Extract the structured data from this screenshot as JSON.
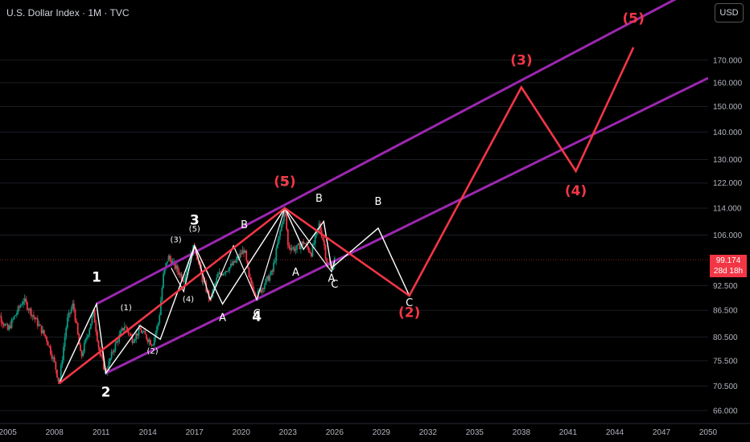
{
  "header": {
    "symbol": "U.S. Dollar Index · 1M · TVC",
    "currency_button": "USD"
  },
  "price_tag": {
    "value": "99.174",
    "countdown": "28d 18h"
  },
  "colors": {
    "background": "#000000",
    "channel": "#9c27b0",
    "projection": "#f23645",
    "waves": "#ffffff",
    "candle_up": "#089981",
    "candle_down": "#f23645"
  },
  "chart_data": {
    "type": "line",
    "title": "U.S. Dollar Index · 1M · TVC",
    "x_ticks": [
      "2005",
      "2008",
      "2011",
      "2014",
      "2017",
      "2020",
      "2023",
      "2026",
      "2029",
      "2032",
      "2035",
      "2038",
      "2041",
      "2044",
      "2047",
      "2050"
    ],
    "y_ticks": [
      "170.000",
      "160.000",
      "150.000",
      "140.000",
      "130.000",
      "122.000",
      "114.000",
      "106.000",
      "92.500",
      "86.500",
      "80.500",
      "75.500",
      "70.500",
      "66.000"
    ],
    "y_scale": "log",
    "xlim": [
      2004.5,
      2050
    ],
    "ylim": [
      64,
      200
    ],
    "last_price": 99.174,
    "price_history": [
      [
        2004.0,
        88
      ],
      [
        2005.0,
        82
      ],
      [
        2006.0,
        89
      ],
      [
        2006.5,
        86
      ],
      [
        2007.0,
        83
      ],
      [
        2007.5,
        80
      ],
      [
        2008.0,
        75
      ],
      [
        2008.3,
        71
      ],
      [
        2008.8,
        84
      ],
      [
        2009.2,
        88
      ],
      [
        2009.7,
        76
      ],
      [
        2010.2,
        82
      ],
      [
        2010.5,
        86
      ],
      [
        2010.9,
        77
      ],
      [
        2011.3,
        73
      ],
      [
        2011.8,
        78
      ],
      [
        2012.5,
        83
      ],
      [
        2013.0,
        80
      ],
      [
        2013.5,
        82
      ],
      [
        2014.3,
        79
      ],
      [
        2014.7,
        84
      ],
      [
        2015.0,
        95
      ],
      [
        2015.3,
        100
      ],
      [
        2015.8,
        97
      ],
      [
        2016.3,
        94
      ],
      [
        2016.8,
        101
      ],
      [
        2017.0,
        103
      ],
      [
        2017.5,
        94
      ],
      [
        2018.0,
        89
      ],
      [
        2018.5,
        95
      ],
      [
        2019.5,
        98
      ],
      [
        2020.2,
        102
      ],
      [
        2020.5,
        94
      ],
      [
        2021.0,
        90
      ],
      [
        2021.5,
        93
      ],
      [
        2022.0,
        96
      ],
      [
        2022.5,
        107
      ],
      [
        2022.8,
        114
      ],
      [
        2023.0,
        103
      ],
      [
        2023.5,
        102
      ],
      [
        2024.0,
        104
      ],
      [
        2024.5,
        101
      ],
      [
        2025.0,
        109
      ],
      [
        2025.3,
        104
      ],
      [
        2025.5,
        98
      ],
      [
        2025.8,
        97
      ],
      [
        2026.0,
        99.174
      ]
    ],
    "channel_upper": [
      [
        2010.7,
        88
      ],
      [
        2050,
        210
      ]
    ],
    "channel_lower": [
      [
        2011.3,
        73
      ],
      [
        2050,
        162
      ]
    ],
    "projection_path": [
      [
        2008.3,
        71
      ],
      [
        2022.8,
        114
      ],
      [
        2030.8,
        90
      ],
      [
        2038,
        158
      ],
      [
        2041.5,
        126
      ],
      [
        2045.2,
        176
      ]
    ],
    "white_path_1": [
      [
        2008.3,
        71
      ],
      [
        2010.7,
        88
      ],
      [
        2011.3,
        73
      ],
      [
        2013.5,
        83
      ],
      [
        2014.8,
        80
      ],
      [
        2017.0,
        103
      ],
      [
        2018.8,
        88
      ],
      [
        2022.8,
        114
      ],
      [
        2024.0,
        102
      ],
      [
        2025.3,
        110
      ],
      [
        2025.8,
        97
      ],
      [
        2028.8,
        108
      ],
      [
        2030.8,
        90
      ]
    ],
    "white_path_2": [
      [
        2015.5,
        97
      ],
      [
        2016.3,
        91
      ],
      [
        2017.0,
        103
      ],
      [
        2018.0,
        89
      ],
      [
        2019.5,
        103
      ],
      [
        2021.0,
        89
      ],
      [
        2022.8,
        114
      ],
      [
        2025.8,
        96
      ],
      [
        2026.0,
        99
      ]
    ],
    "wave_labels": [
      {
        "text": "1",
        "x": 2010.7,
        "y": 93.5,
        "color": "white",
        "size": "large"
      },
      {
        "text": "2",
        "x": 2011.3,
        "y": 68.5,
        "color": "white",
        "size": "large"
      },
      {
        "text": "3",
        "x": 2017.0,
        "y": 109,
        "color": "white",
        "size": "large"
      },
      {
        "text": "4",
        "x": 2021.0,
        "y": 84,
        "color": "white",
        "size": "large"
      },
      {
        "text": "5",
        "x": 2022.8,
        "y": 121,
        "color": "white",
        "size": "large"
      },
      {
        "text": "(1)",
        "x": 2012.6,
        "y": 86.5,
        "color": "white",
        "size": "small"
      },
      {
        "text": "(2)",
        "x": 2014.3,
        "y": 77,
        "color": "white",
        "size": "small"
      },
      {
        "text": "(3)",
        "x": 2015.8,
        "y": 104,
        "color": "white",
        "size": "small"
      },
      {
        "text": "(4)",
        "x": 2016.6,
        "y": 88.5,
        "color": "white",
        "size": "small"
      },
      {
        "text": "(5)",
        "x": 2017.0,
        "y": 107,
        "color": "white",
        "size": "small"
      },
      {
        "text": "A",
        "x": 2018.8,
        "y": 84,
        "color": "white",
        "size": "medium"
      },
      {
        "text": "B",
        "x": 2020.2,
        "y": 108,
        "color": "white",
        "size": "medium"
      },
      {
        "text": "C",
        "x": 2021.0,
        "y": 85,
        "color": "white",
        "size": "medium"
      },
      {
        "text": "A",
        "x": 2023.5,
        "y": 95,
        "color": "white",
        "size": "medium"
      },
      {
        "text": "B",
        "x": 2025.0,
        "y": 116,
        "color": "white",
        "size": "medium"
      },
      {
        "text": "A",
        "x": 2025.8,
        "y": 93.5,
        "color": "white",
        "size": "medium"
      },
      {
        "text": "C",
        "x": 2026.0,
        "y": 92,
        "color": "white",
        "size": "medium"
      },
      {
        "text": "B",
        "x": 2028.8,
        "y": 115,
        "color": "white",
        "size": "medium"
      },
      {
        "text": "C",
        "x": 2030.8,
        "y": 87.5,
        "color": "white",
        "size": "medium"
      },
      {
        "text": "(5)",
        "x": 2022.8,
        "y": 121,
        "color": "red",
        "size": "large"
      },
      {
        "text": "(2)",
        "x": 2030.8,
        "y": 85,
        "color": "red",
        "size": "large"
      },
      {
        "text": "(3)",
        "x": 2038.0,
        "y": 168,
        "color": "red",
        "size": "large"
      },
      {
        "text": "(4)",
        "x": 2041.5,
        "y": 118,
        "color": "red",
        "size": "large"
      },
      {
        "text": "(5)",
        "x": 2045.2,
        "y": 188,
        "color": "red",
        "size": "large"
      }
    ]
  }
}
